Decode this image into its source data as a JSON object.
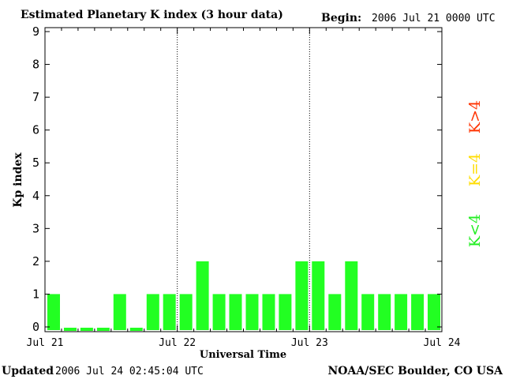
{
  "header": {
    "title": "Estimated Planetary K index (3 hour data)",
    "begin_label": "Begin:",
    "begin_value": "2006 Jul 21 0000 UTC"
  },
  "footer": {
    "updated_label": "Updated",
    "updated_value": "2006 Jul 24 02:45:04 UTC",
    "source": "NOAA/SEC Boulder, CO USA"
  },
  "legend": [
    {
      "label": "K>4",
      "color": "#ff3300"
    },
    {
      "label": "K=4",
      "color": "#ffdd00"
    },
    {
      "label": "K<4",
      "color": "#22ee22"
    }
  ],
  "colors": {
    "bar": "#22ff22",
    "axis": "#000000"
  },
  "chart_data": {
    "type": "bar",
    "title": "Estimated Planetary K index (3 hour data)",
    "xlabel": "Universal Time",
    "ylabel": "Kp index",
    "ylim": [
      0,
      9
    ],
    "yticks": [
      "0",
      "1",
      "2",
      "3",
      "4",
      "5",
      "6",
      "7",
      "8",
      "9"
    ],
    "day_labels": [
      "Jul 21",
      "Jul 22",
      "Jul 23",
      "Jul 24"
    ],
    "interval_hours": 3,
    "values": [
      1,
      0,
      0,
      0,
      1,
      0,
      1,
      1,
      1,
      2,
      1,
      1,
      1,
      1,
      1,
      2,
      2,
      1,
      2,
      1,
      1,
      1,
      1,
      1
    ],
    "grid": "dotted day separators"
  }
}
